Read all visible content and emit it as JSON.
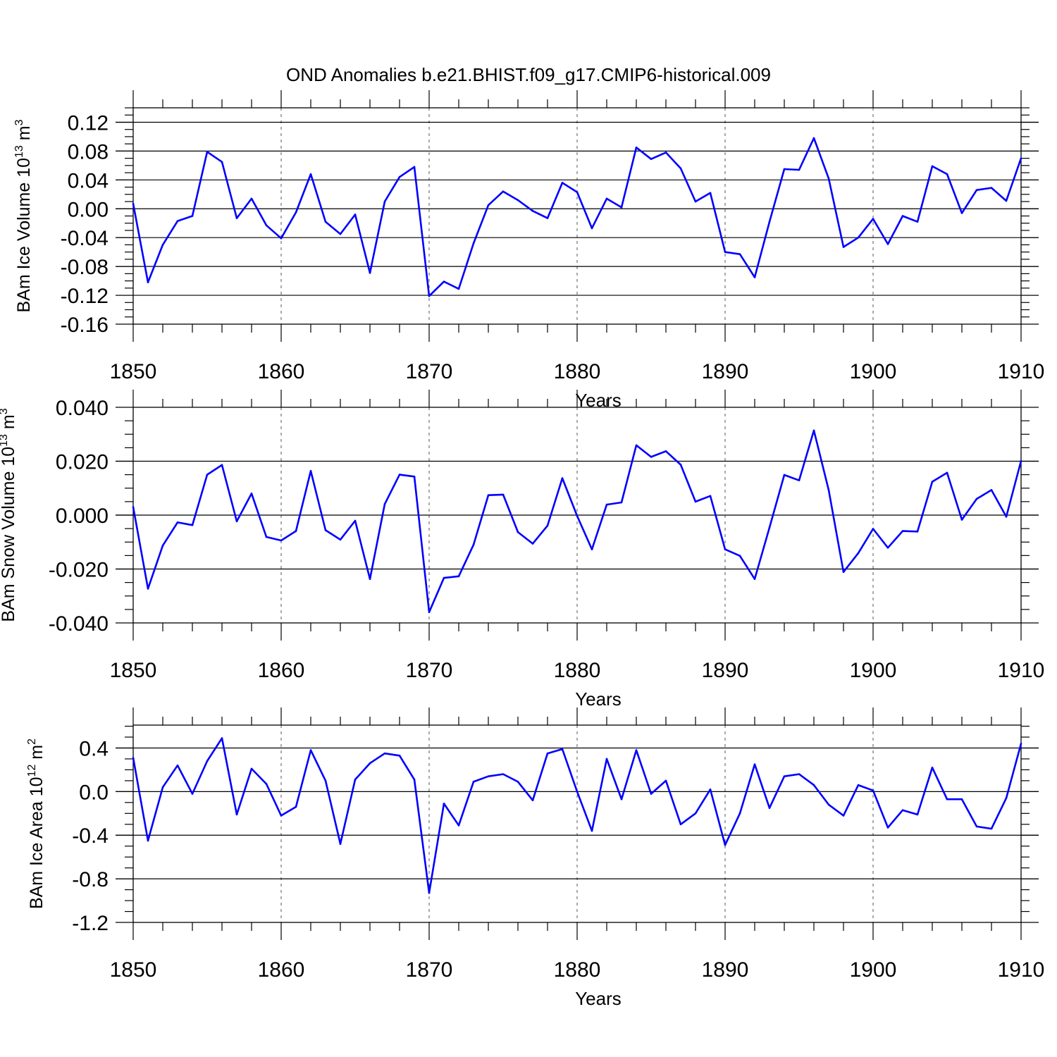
{
  "title": "OND Anomalies b.e21.BHIST.f09_g17.CMIP6-historical.009",
  "colors": {
    "series": "#0000ff",
    "axis": "#000000"
  },
  "chart_data": [
    {
      "type": "line",
      "name": "ice-volume",
      "ylabel_main": "BAm Ice Volume 10",
      "ylabel_sup": "13",
      "ylabel_unit": "m",
      "ylabel_unit_sup": "3",
      "xlabel": "Years",
      "xlim": [
        1850,
        1910
      ],
      "ylim": [
        -0.16,
        0.14
      ],
      "x_ticks": [
        "1850",
        "1860",
        "1870",
        "1880",
        "1890",
        "1900",
        "1910"
      ],
      "y_ticks": [
        "0.12",
        "0.08",
        "0.04",
        "0.00",
        "-0.04",
        "-0.08",
        "-0.12",
        "-0.16"
      ],
      "y_tick_values": [
        0.12,
        0.08,
        0.04,
        0.0,
        -0.04,
        -0.08,
        -0.12,
        -0.16
      ],
      "grid_x": true,
      "x": [
        1850,
        1851,
        1852,
        1853,
        1854,
        1855,
        1856,
        1857,
        1858,
        1859,
        1860,
        1861,
        1862,
        1863,
        1864,
        1865,
        1866,
        1867,
        1868,
        1869,
        1870,
        1871,
        1872,
        1873,
        1874,
        1875,
        1876,
        1877,
        1878,
        1879,
        1880,
        1881,
        1882,
        1883,
        1884,
        1885,
        1886,
        1887,
        1888,
        1889,
        1890,
        1891,
        1892,
        1893,
        1894,
        1895,
        1896,
        1897,
        1898,
        1899,
        1900,
        1901,
        1902,
        1903,
        1904,
        1905,
        1906,
        1907,
        1908,
        1909,
        1910
      ],
      "values": [
        0.007,
        -0.102,
        -0.05,
        -0.017,
        -0.01,
        0.079,
        0.065,
        -0.013,
        0.014,
        -0.023,
        -0.041,
        -0.005,
        0.048,
        -0.018,
        -0.035,
        -0.008,
        -0.089,
        0.01,
        0.044,
        0.058,
        -0.121,
        -0.101,
        -0.111,
        -0.048,
        0.005,
        0.024,
        0.012,
        -0.003,
        -0.013,
        0.036,
        0.023,
        -0.027,
        0.014,
        0.002,
        0.085,
        0.069,
        0.078,
        0.056,
        0.01,
        0.022,
        -0.06,
        -0.063,
        -0.095,
        -0.018,
        0.055,
        0.054,
        0.098,
        0.042,
        -0.053,
        -0.04,
        -0.014,
        -0.049,
        -0.01,
        -0.018,
        0.059,
        0.048,
        -0.006,
        0.026,
        0.029,
        0.011,
        0.07
      ]
    },
    {
      "type": "line",
      "name": "snow-volume",
      "ylabel_main": "BAm Snow Volume 10",
      "ylabel_sup": "13",
      "ylabel_unit": "m",
      "ylabel_unit_sup": "3",
      "xlabel": "Years",
      "xlim": [
        1850,
        1910
      ],
      "ylim": [
        -0.04,
        0.04
      ],
      "x_ticks": [
        "1850",
        "1860",
        "1870",
        "1880",
        "1890",
        "1900",
        "1910"
      ],
      "y_ticks": [
        "0.040",
        "0.020",
        "0.000",
        "-0.020",
        "-0.040"
      ],
      "y_tick_values": [
        0.04,
        0.02,
        0.0,
        -0.02,
        -0.04
      ],
      "grid_x": true,
      "x": [
        1850,
        1851,
        1852,
        1853,
        1854,
        1855,
        1856,
        1857,
        1858,
        1859,
        1860,
        1861,
        1862,
        1863,
        1864,
        1865,
        1866,
        1867,
        1868,
        1869,
        1870,
        1871,
        1872,
        1873,
        1874,
        1875,
        1876,
        1877,
        1878,
        1879,
        1880,
        1881,
        1882,
        1883,
        1884,
        1885,
        1886,
        1887,
        1888,
        1889,
        1890,
        1891,
        1892,
        1893,
        1894,
        1895,
        1896,
        1897,
        1898,
        1899,
        1900,
        1901,
        1902,
        1903,
        1904,
        1905,
        1906,
        1907,
        1908,
        1909,
        1910
      ],
      "values": [
        0.003,
        -0.0273,
        -0.0113,
        -0.0027,
        -0.0037,
        0.015,
        0.0186,
        -0.0023,
        0.008,
        -0.0081,
        -0.0094,
        -0.0059,
        0.0164,
        -0.0056,
        -0.0091,
        -0.0021,
        -0.0237,
        0.0041,
        0.015,
        0.0143,
        -0.036,
        -0.0233,
        -0.0227,
        -0.011,
        0.0074,
        0.0076,
        -0.0063,
        -0.0106,
        -0.0039,
        0.0137,
        -0.0003,
        -0.0127,
        0.0039,
        0.0047,
        0.0259,
        0.0216,
        0.0237,
        0.0187,
        0.005,
        0.0071,
        -0.0127,
        -0.0151,
        -0.0237,
        -0.0046,
        0.0149,
        0.0129,
        0.0314,
        0.0093,
        -0.0211,
        -0.0141,
        -0.0051,
        -0.0121,
        -0.0059,
        -0.0061,
        0.0124,
        0.0157,
        -0.0017,
        0.006,
        0.0093,
        -0.0006,
        0.0201
      ]
    },
    {
      "type": "line",
      "name": "ice-area",
      "ylabel_main": "BAm Ice Area 10",
      "ylabel_sup": "12",
      "ylabel_unit": "m",
      "ylabel_unit_sup": "2",
      "xlabel": "Years",
      "xlim": [
        1850,
        1910
      ],
      "ylim": [
        -1.2,
        0.61
      ],
      "x_ticks": [
        "1850",
        "1860",
        "1870",
        "1880",
        "1890",
        "1900",
        "1910"
      ],
      "y_ticks": [
        "0.4",
        "0.0",
        "-0.4",
        "-0.8",
        "-1.2"
      ],
      "y_tick_values": [
        0.4,
        0.0,
        -0.4,
        -0.8,
        -1.2
      ],
      "grid_x": true,
      "x": [
        1850,
        1851,
        1852,
        1853,
        1854,
        1855,
        1856,
        1857,
        1858,
        1859,
        1860,
        1861,
        1862,
        1863,
        1864,
        1865,
        1866,
        1867,
        1868,
        1869,
        1870,
        1871,
        1872,
        1873,
        1874,
        1875,
        1876,
        1877,
        1878,
        1879,
        1880,
        1881,
        1882,
        1883,
        1884,
        1885,
        1886,
        1887,
        1888,
        1889,
        1890,
        1891,
        1892,
        1893,
        1894,
        1895,
        1896,
        1897,
        1898,
        1899,
        1900,
        1901,
        1902,
        1903,
        1904,
        1905,
        1906,
        1907,
        1908,
        1909,
        1910
      ],
      "values": [
        0.31,
        -0.45,
        0.04,
        0.24,
        -0.02,
        0.28,
        0.49,
        -0.21,
        0.21,
        0.07,
        -0.22,
        -0.14,
        0.38,
        0.1,
        -0.48,
        0.11,
        0.26,
        0.35,
        0.33,
        0.11,
        -0.93,
        -0.11,
        -0.31,
        0.09,
        0.14,
        0.16,
        0.09,
        -0.08,
        0.35,
        0.39,
        0.0,
        -0.36,
        0.3,
        -0.07,
        0.38,
        -0.02,
        0.1,
        -0.3,
        -0.2,
        0.02,
        -0.49,
        -0.2,
        0.25,
        -0.15,
        0.14,
        0.16,
        0.06,
        -0.12,
        -0.22,
        0.06,
        0.01,
        -0.33,
        -0.17,
        -0.21,
        0.22,
        -0.07,
        -0.07,
        -0.32,
        -0.34,
        -0.06,
        0.44
      ]
    }
  ]
}
